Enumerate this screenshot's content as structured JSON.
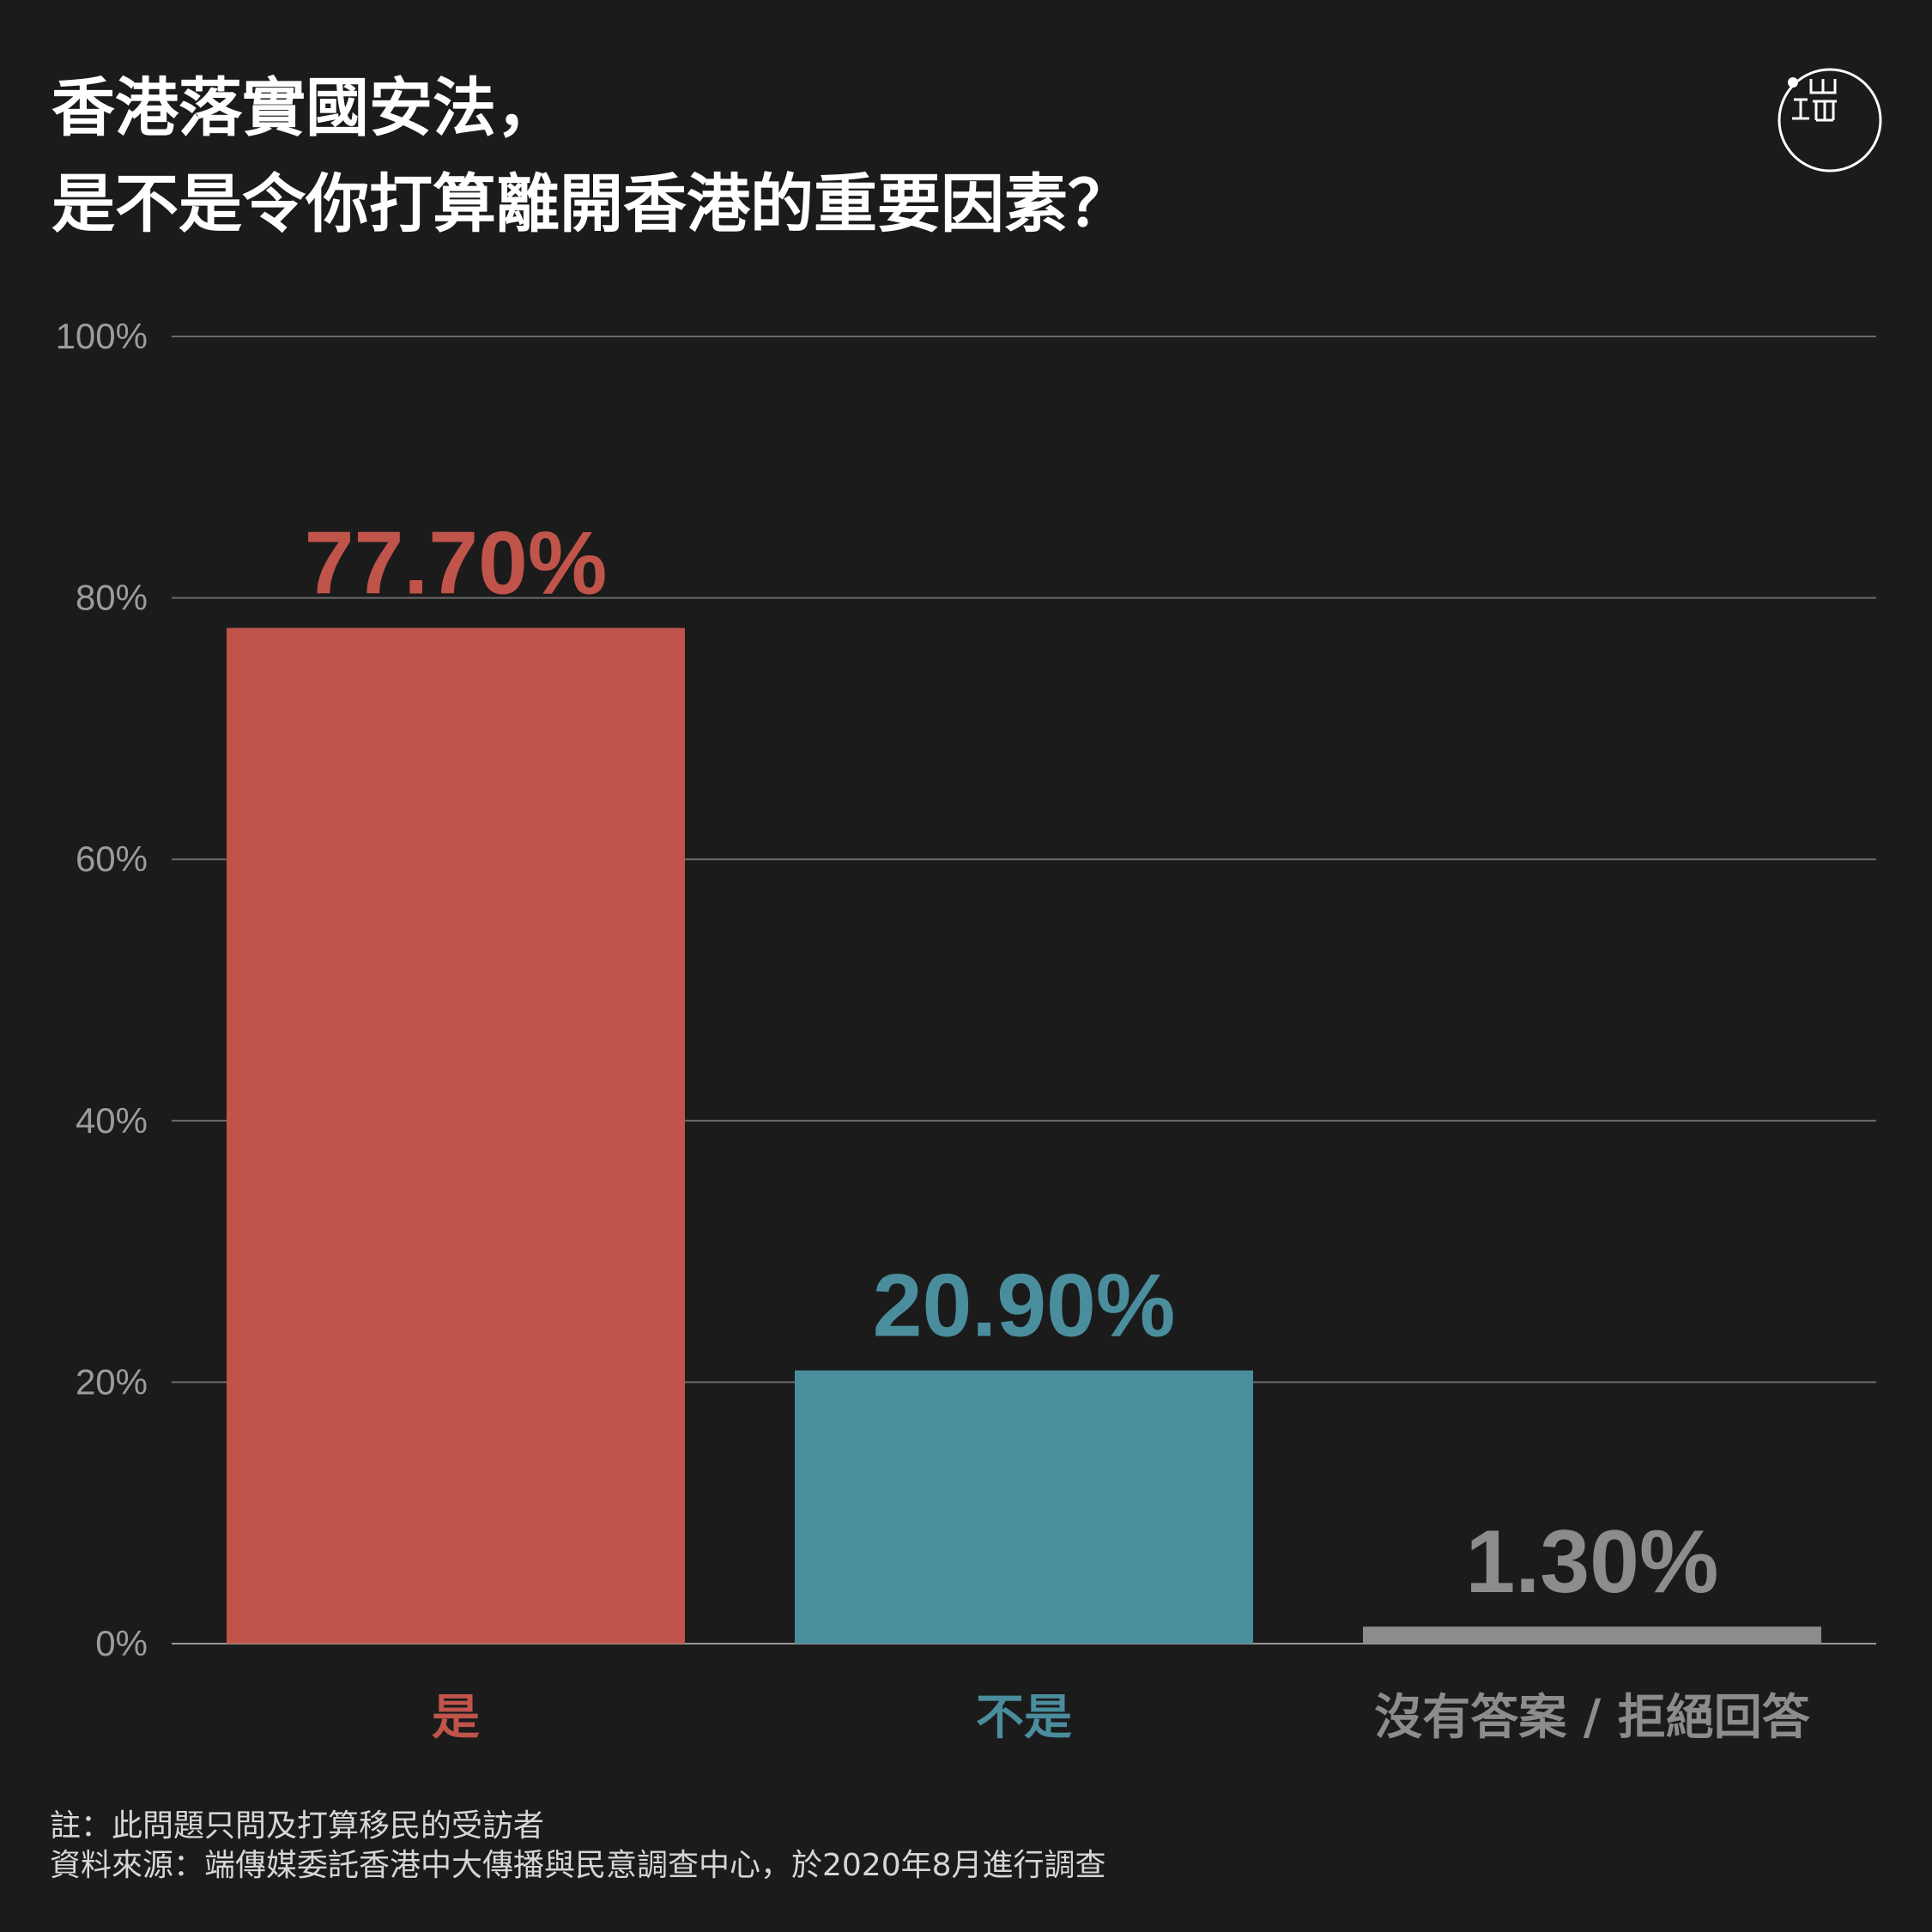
{
  "title": {
    "line1": "香港落實國安法，",
    "line2": "是不是令你打算離開香港的重要因素？"
  },
  "logo": {
    "icon": "initium-media-logo-icon"
  },
  "chart_data": {
    "type": "bar",
    "categories": [
      "是",
      "不是",
      "沒有答案 / 拒絕回答"
    ],
    "values": [
      77.7,
      20.9,
      1.3
    ],
    "value_labels": [
      "77.70%",
      "20.90%",
      "1.30%"
    ],
    "colors": [
      "#c0544b",
      "#4a8e9e",
      "#8c8c8c"
    ],
    "ylim": [
      0,
      100
    ],
    "yticks": [
      0,
      20,
      40,
      60,
      80,
      100
    ],
    "ytick_labels": [
      "0%",
      "20%",
      "40%",
      "60%",
      "80%",
      "100%"
    ],
    "grid": true,
    "legend": "none"
  },
  "notes": {
    "note": "註：此問題只問及打算移民的受訪者",
    "source": "資料來源：端傳媒委託香港中大傳播與民意調查中心，於2020年8月進行調查"
  }
}
